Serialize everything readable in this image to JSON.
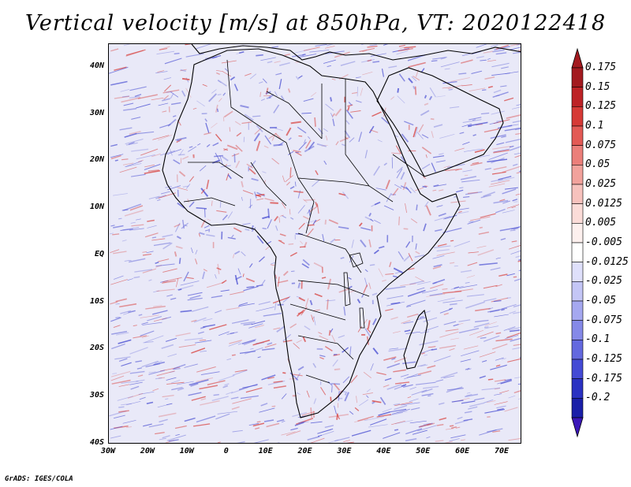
{
  "title": "Vertical velocity [m/s] at 850hPa, VT: 2020122418",
  "credit": "GrADS: IGES/COLA",
  "map": {
    "variable": "vertical velocity",
    "level": "850hPa",
    "valid_time": "2020122418",
    "lon_range": [
      -30,
      75
    ],
    "lat_range": [
      -40,
      45
    ],
    "y_ticks": [
      {
        "label": "40N",
        "lat": 40
      },
      {
        "label": "30N",
        "lat": 30
      },
      {
        "label": "20N",
        "lat": 20
      },
      {
        "label": "10N",
        "lat": 10
      },
      {
        "label": "EQ",
        "lat": 0
      },
      {
        "label": "10S",
        "lat": -10
      },
      {
        "label": "20S",
        "lat": -20
      },
      {
        "label": "30S",
        "lat": -30
      },
      {
        "label": "40S",
        "lat": -40
      }
    ],
    "x_ticks": [
      {
        "label": "30W",
        "lon": -30
      },
      {
        "label": "20W",
        "lon": -20
      },
      {
        "label": "10W",
        "lon": -10
      },
      {
        "label": "0",
        "lon": 0
      },
      {
        "label": "10E",
        "lon": 10
      },
      {
        "label": "20E",
        "lon": 20
      },
      {
        "label": "30E",
        "lon": 30
      },
      {
        "label": "40E",
        "lon": 40
      },
      {
        "label": "50E",
        "lon": 50
      },
      {
        "label": "60E",
        "lon": 60
      },
      {
        "label": "70E",
        "lon": 70
      }
    ]
  },
  "colorbar": {
    "levels": [
      {
        "label": "0.175",
        "color": "#a31a1f"
      },
      {
        "label": "0.15",
        "color": "#bd2226"
      },
      {
        "label": "0.125",
        "color": "#d63a36"
      },
      {
        "label": "0.1",
        "color": "#e35a55"
      },
      {
        "label": "0.075",
        "color": "#eb7f7a"
      },
      {
        "label": "0.05",
        "color": "#f2a29c"
      },
      {
        "label": "0.025",
        "color": "#f7c2bd"
      },
      {
        "label": "0.0125",
        "color": "#fbdcd8"
      },
      {
        "label": "0.005",
        "color": "#fdf0ee"
      },
      {
        "label": "-0.005",
        "color": "#ffffff"
      },
      {
        "label": "-0.0125",
        "color": "#dfe0fb"
      },
      {
        "label": "-0.025",
        "color": "#c4c6f6"
      },
      {
        "label": "-0.05",
        "color": "#a5a8f0"
      },
      {
        "label": "-0.075",
        "color": "#8589e8"
      },
      {
        "label": "-0.1",
        "color": "#6469df"
      },
      {
        "label": "-0.125",
        "color": "#444ad5"
      },
      {
        "label": "-0.175",
        "color": "#2a31c2"
      },
      {
        "label": "-0.2",
        "color": "#1a1fa8"
      }
    ],
    "top_arrow_color": "#a31a1f",
    "bottom_arrow_color": "#3b17b8"
  },
  "palette": {
    "ocean_base": "#e9e9f8",
    "land_base": "#d8d8f0",
    "up_color": "#d8423f",
    "down_color": "#4a4fd2",
    "border_color": "#000000"
  }
}
